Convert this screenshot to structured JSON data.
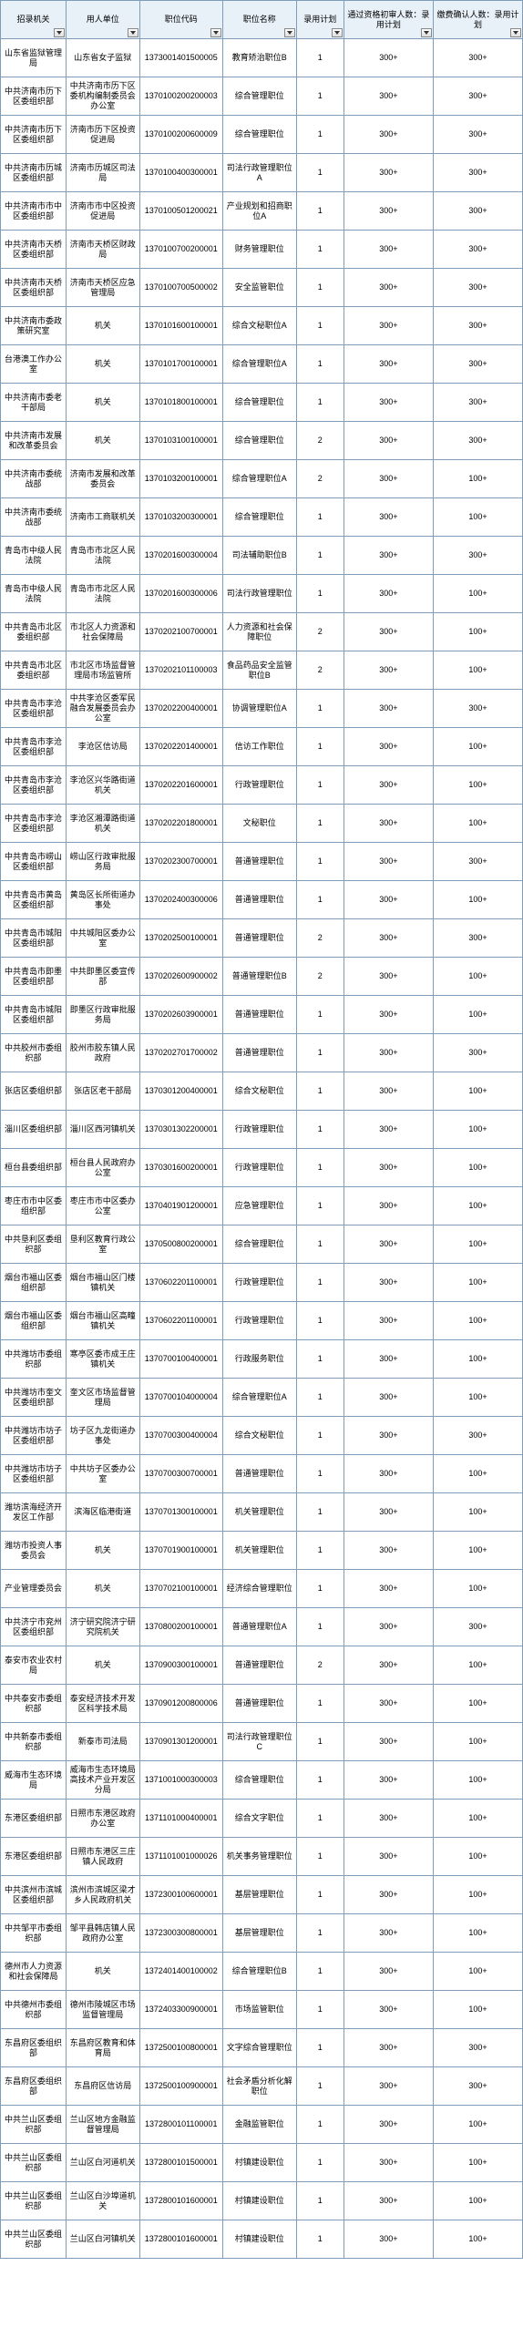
{
  "columns": [
    "招录机关",
    "用人单位",
    "职位代码",
    "职位名称",
    "录用计划",
    "通过资格初审人数：录用计划",
    "缴费确认人数：录用计划"
  ],
  "col_widths": [
    "66px",
    "74px",
    "84px",
    "74px",
    "48px",
    "90px",
    "90px"
  ],
  "header_bg": "#e8f0f8",
  "border_color": "#7f9db9",
  "font_size": 9,
  "rows": [
    [
      "山东省监狱管理局",
      "山东省女子监狱",
      "1373001401500005",
      "教育矫治职位B",
      "1",
      "300+",
      "300+"
    ],
    [
      "中共济南市历下区委组织部",
      "中共济南市历下区委机构编制委员会办公室",
      "1370100200200003",
      "综合管理职位",
      "1",
      "300+",
      "300+"
    ],
    [
      "中共济南市历下区委组织部",
      "济南市历下区投资促进局",
      "1370100200600009",
      "综合管理职位",
      "1",
      "300+",
      "300+"
    ],
    [
      "中共济南市历城区委组织部",
      "济南市历城区司法局",
      "1370100400300001",
      "司法行政管理职位A",
      "1",
      "300+",
      "300+"
    ],
    [
      "中共济南市市中区委组织部",
      "济南市市中区投资促进局",
      "1370100501200021",
      "产业规划和招商职位A",
      "1",
      "300+",
      "300+"
    ],
    [
      "中共济南市天桥区委组织部",
      "济南市天桥区财政局",
      "1370100700200001",
      "财务管理职位",
      "1",
      "300+",
      "300+"
    ],
    [
      "中共济南市天桥区委组织部",
      "济南市天桥区应急管理局",
      "1370100700500002",
      "安全监管职位",
      "1",
      "300+",
      "300+"
    ],
    [
      "中共济南市委政策研究室",
      "机关",
      "1370101600100001",
      "综合文秘职位A",
      "1",
      "300+",
      "300+"
    ],
    [
      "台港澳工作办公室",
      "机关",
      "1370101700100001",
      "综合管理职位A",
      "1",
      "300+",
      "300+"
    ],
    [
      "中共济南市委老干部局",
      "机关",
      "1370101800100001",
      "综合管理职位",
      "1",
      "300+",
      "300+"
    ],
    [
      "中共济南市发展和改革委员会",
      "机关",
      "1370103100100001",
      "综合管理职位",
      "2",
      "300+",
      "300+"
    ],
    [
      "中共济南市委统战部",
      "济南市发展和改革委员会",
      "1370103200100001",
      "综合管理职位A",
      "2",
      "300+",
      "100+"
    ],
    [
      "中共济南市委统战部",
      "济南市工商联机关",
      "1370103200300001",
      "综合管理职位",
      "1",
      "300+",
      "100+"
    ],
    [
      "青岛市中级人民法院",
      "青岛市市北区人民法院",
      "1370201600300004",
      "司法辅助职位B",
      "1",
      "300+",
      "300+"
    ],
    [
      "青岛市中级人民法院",
      "青岛市市北区人民法院",
      "1370201600300006",
      "司法行政管理职位",
      "1",
      "300+",
      "100+"
    ],
    [
      "中共青岛市北区委组织部",
      "市北区人力资源和社会保障局",
      "1370202100700001",
      "人力资源和社会保障职位",
      "2",
      "300+",
      "100+"
    ],
    [
      "中共青岛市北区委组织部",
      "市北区市场监督管理局市场监管所",
      "1370202101100003",
      "食品药品安全监管职位B",
      "2",
      "300+",
      "100+"
    ],
    [
      "中共青岛市李沧区委组织部",
      "中共李沧区委军民融合发展委员会办公室",
      "1370202200400001",
      "协调管理职位A",
      "1",
      "300+",
      "300+"
    ],
    [
      "中共青岛市李沧区委组织部",
      "李沧区信访局",
      "1370202201400001",
      "信访工作职位",
      "1",
      "300+",
      "100+"
    ],
    [
      "中共青岛市李沧区委组织部",
      "李沧区兴华路街道机关",
      "1370202201600001",
      "行政管理职位",
      "1",
      "300+",
      "100+"
    ],
    [
      "中共青岛市李沧区委组织部",
      "李沧区湘潭路街道机关",
      "1370202201800001",
      "文秘职位",
      "1",
      "300+",
      "100+"
    ],
    [
      "中共青岛市崂山区委组织部",
      "崂山区行政审批服务局",
      "1370202300700001",
      "普通管理职位",
      "1",
      "300+",
      "300+"
    ],
    [
      "中共青岛市黄岛区委组织部",
      "黄岛区长所街道办事处",
      "1370202400300006",
      "普通管理职位",
      "1",
      "300+",
      "100+"
    ],
    [
      "中共青岛市城阳区委组织部",
      "中共城阳区委办公室",
      "1370202500100001",
      "普通管理职位",
      "2",
      "300+",
      "300+"
    ],
    [
      "中共青岛市即墨区委组织部",
      "中共即墨区委宣传部",
      "1370202600900002",
      "普通管理职位B",
      "2",
      "300+",
      "100+"
    ],
    [
      "中共青岛市城阳区委组织部",
      "即墨区行政审批服务局",
      "1370202603900001",
      "普通管理职位",
      "1",
      "300+",
      "100+"
    ],
    [
      "中共胶州市委组织部",
      "胶州市胶东镇人民政府",
      "1370202701700002",
      "普通管理职位",
      "1",
      "300+",
      "300+"
    ],
    [
      "张店区委组织部",
      "张店区老干部局",
      "1370301200400001",
      "综合文秘职位",
      "1",
      "300+",
      "100+"
    ],
    [
      "淄川区委组织部",
      "淄川区西河镇机关",
      "1370301302200001",
      "行政管理职位",
      "1",
      "300+",
      "100+"
    ],
    [
      "桓台县委组织部",
      "桓台县人民政府办公室",
      "1370301600200001",
      "行政管理职位",
      "1",
      "300+",
      "100+"
    ],
    [
      "枣庄市市中区委组织部",
      "枣庄市市中区委办公室",
      "1370401901200001",
      "应急管理职位",
      "1",
      "300+",
      "100+"
    ],
    [
      "中共垦利区委组织部",
      "垦利区教育行政公室",
      "1370500800200001",
      "综合管理职位",
      "1",
      "300+",
      "100+"
    ],
    [
      "烟台市福山区委组织部",
      "烟台市福山区门楼镇机关",
      "1370602201100001",
      "行政管理职位",
      "1",
      "300+",
      "100+"
    ],
    [
      "烟台市福山区委组织部",
      "烟台市福山区高疃镇机关",
      "1370602201100001",
      "行政管理职位",
      "1",
      "300+",
      "100+"
    ],
    [
      "中共潍坊市委组织部",
      "寒亭区委市成王庄镇机关",
      "1370700100400001",
      "行政服务职位",
      "1",
      "300+",
      "100+"
    ],
    [
      "中共潍坊市奎文区委组织部",
      "奎文区市场监督管理局",
      "1370700104000004",
      "综合管理职位A",
      "1",
      "300+",
      "100+"
    ],
    [
      "中共潍坊市坊子区委组织部",
      "坊子区九龙街道办事处",
      "1370700300400004",
      "综合文秘职位",
      "1",
      "300+",
      "300+"
    ],
    [
      "中共潍坊市坊子区委组织部",
      "中共坊子区委办公室",
      "1370700300700001",
      "普通管理职位",
      "1",
      "300+",
      "100+"
    ],
    [
      "潍坊滨海经济开发区工作部",
      "滨海区临港街道",
      "1370701300100001",
      "机关管理职位",
      "1",
      "300+",
      "100+"
    ],
    [
      "潍坊市投资人事委员会",
      "机关",
      "1370701900100001",
      "机关管理职位",
      "1",
      "300+",
      "100+"
    ],
    [
      "产业管理委员会",
      "机关",
      "1370702100100001",
      "经济综合管理职位",
      "1",
      "300+",
      "100+"
    ],
    [
      "中共济宁市兖州区委组织部",
      "济宁研究院济宁研究院机关",
      "1370800200100001",
      "普通管理职位A",
      "1",
      "300+",
      "300+"
    ],
    [
      "泰安市农业农村局",
      "机关",
      "1370900300100001",
      "普通管理职位",
      "2",
      "300+",
      "100+"
    ],
    [
      "中共泰安市委组织部",
      "泰安经济技术开发区科学技术局",
      "1370901200800006",
      "普通管理职位",
      "1",
      "300+",
      "100+"
    ],
    [
      "中共新泰市委组织部",
      "新泰市司法局",
      "1370901301200001",
      "司法行政管理职位C",
      "1",
      "300+",
      "100+"
    ],
    [
      "威海市生态环境局",
      "威海市生态环境局高技术产业开发区分局",
      "1371001000300003",
      "综合管理职位",
      "1",
      "300+",
      "100+"
    ],
    [
      "东港区委组织部",
      "日照市东港区政府办公室",
      "1371101000400001",
      "综合文字职位",
      "1",
      "300+",
      "100+"
    ],
    [
      "东港区委组织部",
      "日照市东港区三庄镇人民政府",
      "1371101001000026",
      "机关事务管理职位",
      "1",
      "300+",
      "100+"
    ],
    [
      "中共滨州市滨城区委组织部",
      "滨州市滨城区梁才乡人民政府机关",
      "1372300100600001",
      "基层管理职位",
      "1",
      "300+",
      "100+"
    ],
    [
      "中共邹平市委组织部",
      "邹平县韩店镇人民政府办公室",
      "1372300300800001",
      "基层管理职位",
      "1",
      "300+",
      "100+"
    ],
    [
      "德州市人力资源和社会保障局",
      "机关",
      "1372401400100002",
      "综合管理职位B",
      "1",
      "300+",
      "100+"
    ],
    [
      "中共德州市委组织部",
      "德州市陵城区市场监督管理局",
      "1372403300900001",
      "市场监管职位",
      "1",
      "300+",
      "100+"
    ],
    [
      "东昌府区委组织部",
      "东昌府区教育和体育局",
      "1372500100800001",
      "文字综合管理职位",
      "1",
      "300+",
      "300+"
    ],
    [
      "东昌府区委组织部",
      "东昌府区信访局",
      "1372500100900001",
      "社会矛盾分析化解职位",
      "1",
      "300+",
      "300+"
    ],
    [
      "中共兰山区委组织部",
      "兰山区地方金融监督管理局",
      "1372800101100001",
      "金融监管职位",
      "1",
      "300+",
      "100+"
    ],
    [
      "中共兰山区委组织部",
      "兰山区白河道机关",
      "1372800101500001",
      "村镇建设职位",
      "1",
      "300+",
      "100+"
    ],
    [
      "中共兰山区委组织部",
      "兰山区白沙埠道机关",
      "1372800101600001",
      "村镇建设职位",
      "1",
      "300+",
      "100+"
    ],
    [
      "中共兰山区委组织部",
      "兰山区白河镇机关",
      "1372800101600001",
      "村镇建设职位",
      "1",
      "300+",
      "100+"
    ]
  ]
}
